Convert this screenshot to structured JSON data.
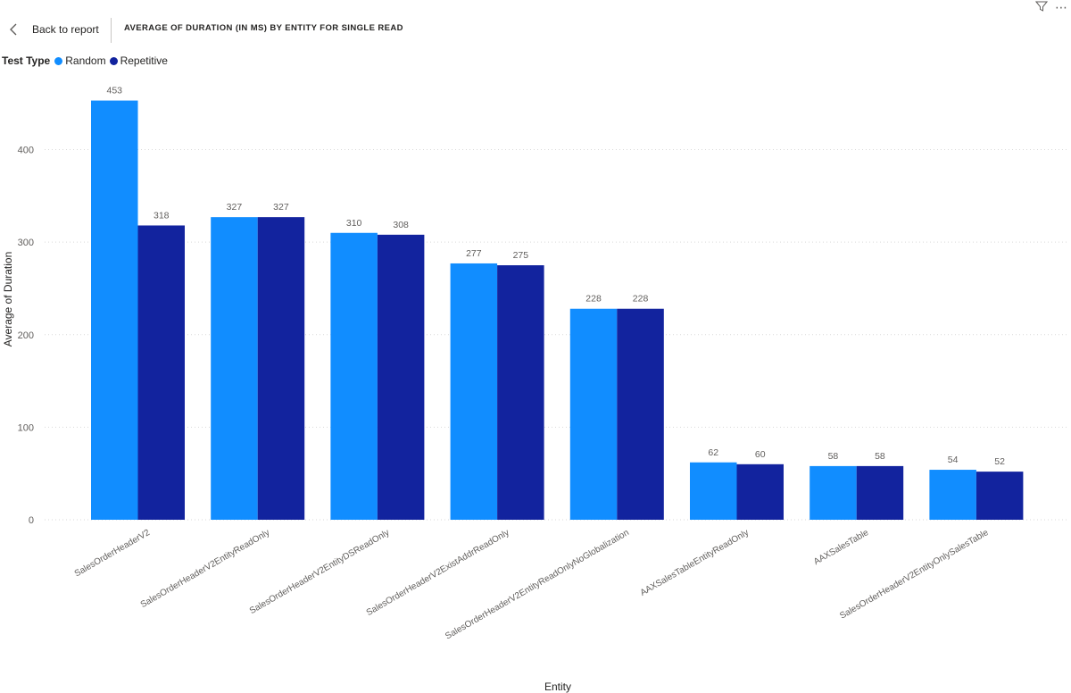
{
  "toolbar": {
    "back_label": "Back to report",
    "title": "AVERAGE OF DURATION (IN MS) BY ENTITY FOR SINGLE READ"
  },
  "legend": {
    "title": "Test Type",
    "items": [
      {
        "label": "Random",
        "color": "#118dff"
      },
      {
        "label": "Repetitive",
        "color": "#12239e"
      }
    ]
  },
  "chart_data": {
    "type": "bar",
    "categories": [
      "SalesOrderHeaderV2",
      "SalesOrderHeaderV2EntityReadOnly",
      "SalesOrderHeaderV2EntityDSReadOnly",
      "SalesOrderHeaderV2ExistAddrReadOnly",
      "SalesOrderHeaderV2EntityReadOnlyNoGlobalization",
      "AAXSalesTableEntityReadOnly",
      "AAXSalesTable",
      "SalesOrderHeaderV2EntityOnlySalesTable"
    ],
    "series": [
      {
        "name": "Random",
        "color": "#118dff",
        "values": [
          453,
          327,
          310,
          277,
          228,
          62,
          58,
          54
        ]
      },
      {
        "name": "Repetitive",
        "color": "#12239e",
        "values": [
          318,
          327,
          308,
          275,
          228,
          60,
          58,
          52
        ]
      }
    ],
    "xlabel": "Entity",
    "ylabel": "Average of Duration",
    "ylim": [
      0,
      453
    ],
    "yticks": [
      0,
      100,
      200,
      300,
      400
    ],
    "grid": true,
    "data_labels": true,
    "legend_position": "top-left"
  }
}
